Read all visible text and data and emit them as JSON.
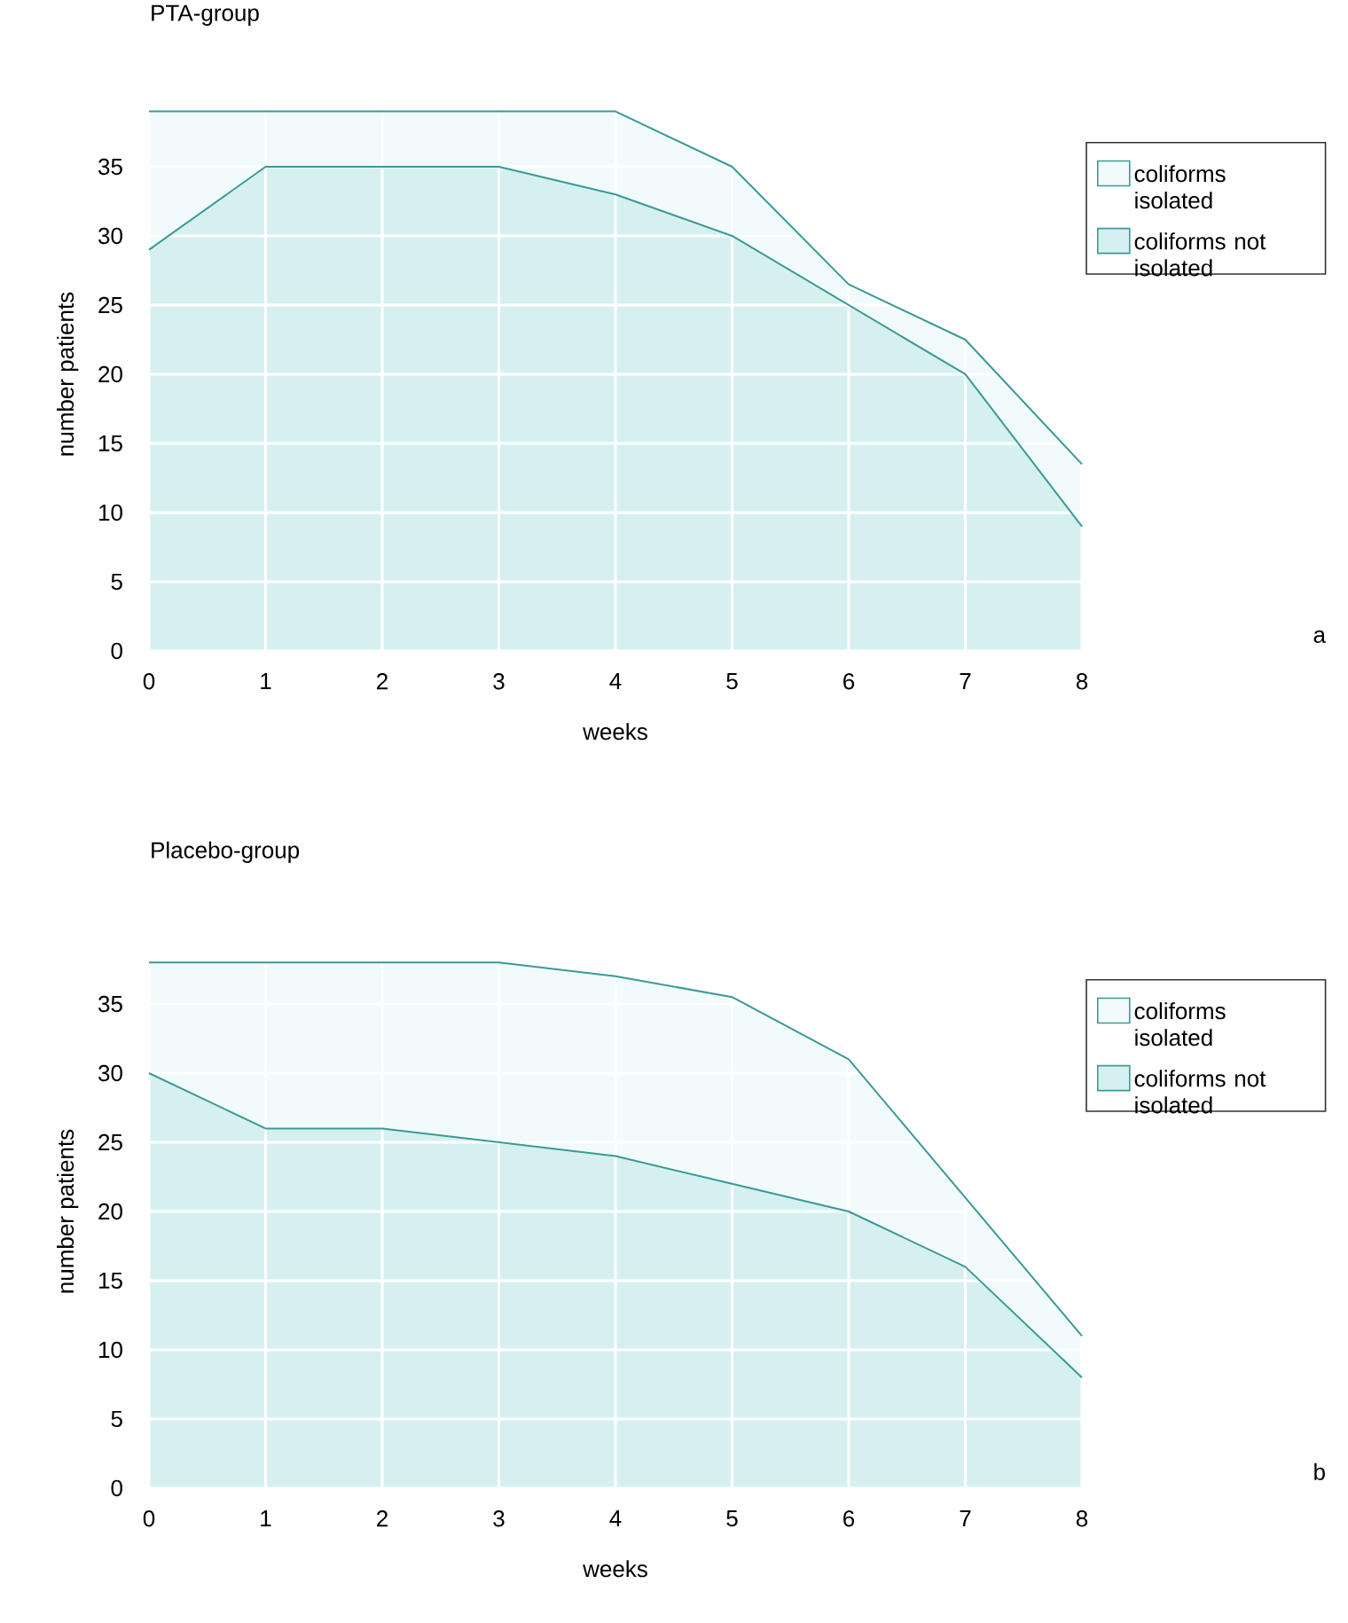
{
  "chart_data": [
    {
      "type": "area",
      "title": "PTA-group",
      "xlabel": "weeks",
      "ylabel": "number patients",
      "stacked": true,
      "x": [
        0,
        1,
        2,
        3,
        4,
        5,
        6,
        7,
        8
      ],
      "series": [
        {
          "name": "coliforms not isolated",
          "color": "#3a9a96",
          "values": [
            29,
            35,
            35,
            35,
            33,
            30,
            25,
            20,
            9
          ]
        },
        {
          "name": "coliforms isolated",
          "color": "#3a9a96",
          "values": [
            10,
            4,
            4,
            4,
            6,
            5,
            1.5,
            2.5,
            4.5
          ]
        }
      ],
      "xlim": [
        0,
        8
      ],
      "ylim": [
        0,
        40
      ],
      "xticks": [
        0,
        1,
        2,
        3,
        4,
        5,
        6,
        7,
        8
      ],
      "yticks": [
        0,
        5,
        10,
        15,
        20,
        25,
        30,
        35
      ],
      "grid": true,
      "legend": "right",
      "annotations": [
        "a"
      ]
    },
    {
      "type": "area",
      "title": "Placebo-group",
      "xlabel": "weeks",
      "ylabel": "number patients",
      "stacked": true,
      "x": [
        0,
        1,
        2,
        3,
        4,
        5,
        6,
        7,
        8
      ],
      "series": [
        {
          "name": "coliforms not isolated",
          "color": "#3a9a96",
          "values": [
            30,
            26,
            26,
            25,
            24,
            22,
            20,
            16,
            8
          ]
        },
        {
          "name": "coliforms isolated",
          "color": "#3a9a96",
          "values": [
            8,
            12,
            12,
            13,
            13,
            13.5,
            11,
            5,
            3
          ]
        }
      ],
      "xlim": [
        0,
        8
      ],
      "ylim": [
        0,
        40
      ],
      "xticks": [
        0,
        1,
        2,
        3,
        4,
        5,
        6,
        7,
        8
      ],
      "yticks": [
        0,
        5,
        10,
        15,
        20,
        25,
        30,
        35
      ],
      "grid": true,
      "legend": "right",
      "annotations": [
        "b"
      ]
    }
  ]
}
